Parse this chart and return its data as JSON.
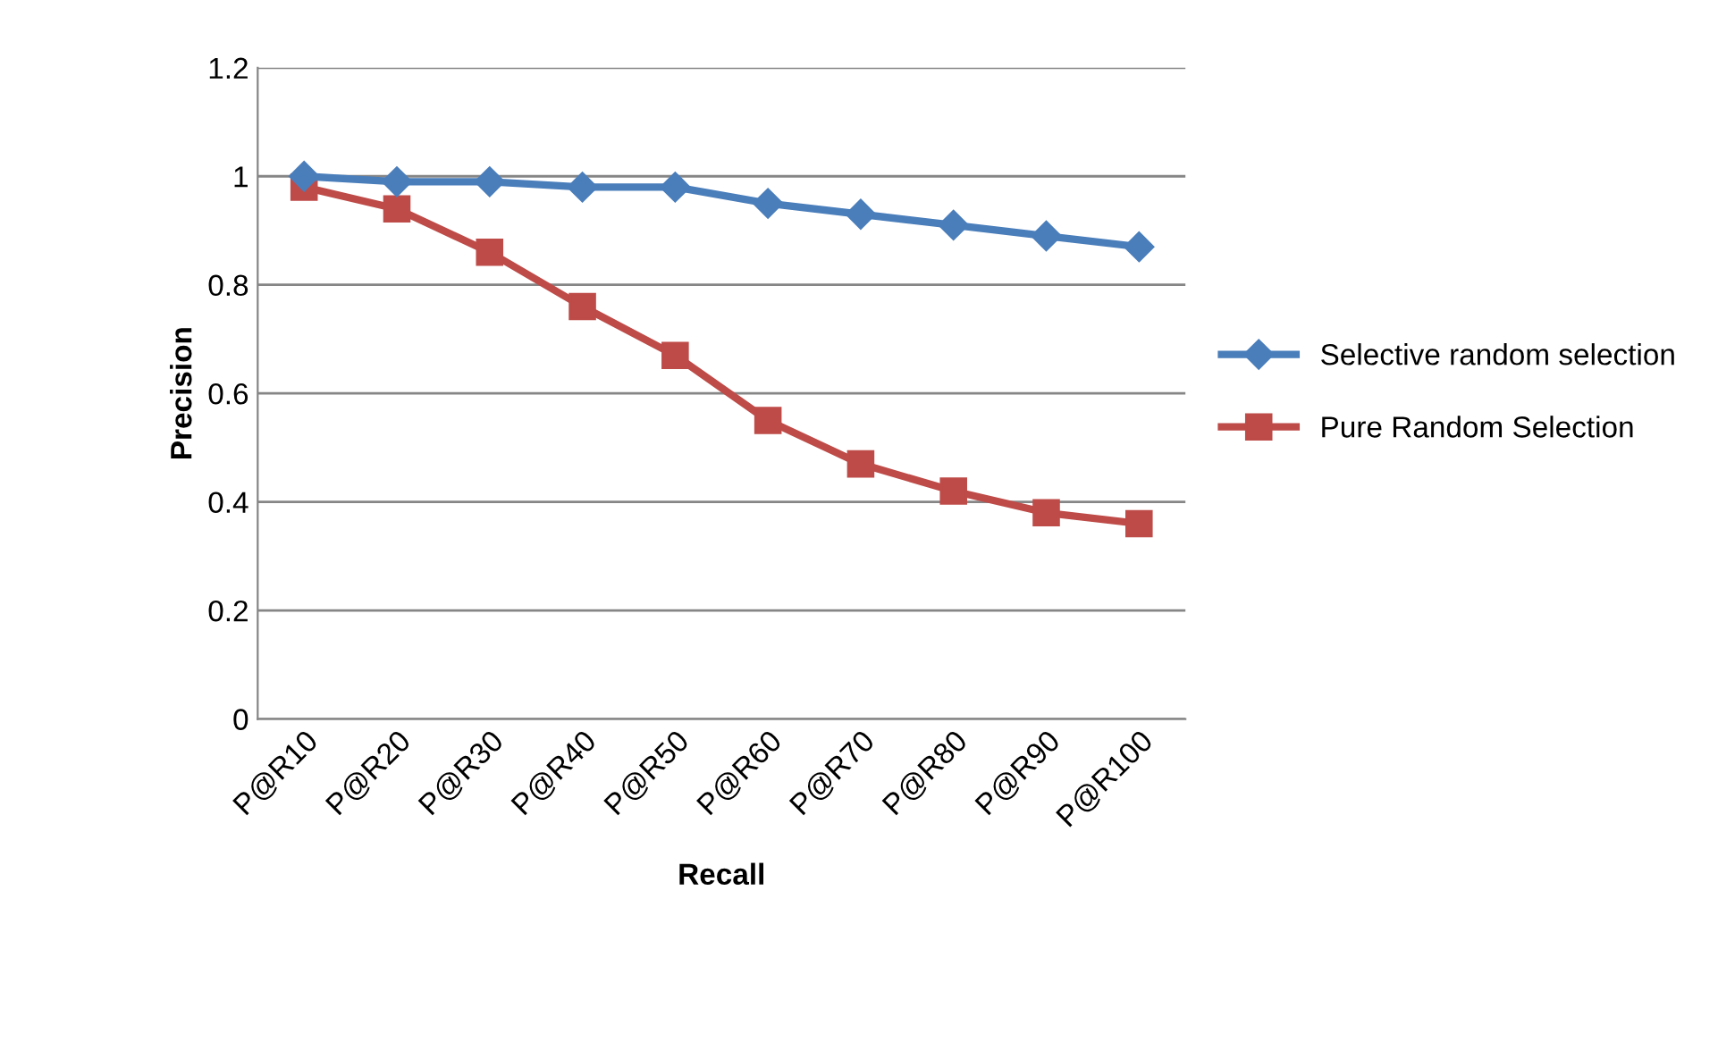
{
  "chart_data": {
    "type": "line",
    "xlabel": "Recall",
    "ylabel": "Precision",
    "categories": [
      "P@R10",
      "P@R20",
      "P@R30",
      "P@R40",
      "P@R50",
      "P@R60",
      "P@R70",
      "P@R80",
      "P@R90",
      "P@R100"
    ],
    "series": [
      {
        "name": "Selective random selection",
        "color": "#4a7ebb",
        "marker": "diamond",
        "values": [
          1.0,
          0.99,
          0.99,
          0.98,
          0.98,
          0.95,
          0.93,
          0.91,
          0.89,
          0.87
        ]
      },
      {
        "name": "Pure Random Selection",
        "color": "#be4b48",
        "marker": "square",
        "values": [
          0.98,
          0.94,
          0.86,
          0.76,
          0.67,
          0.55,
          0.47,
          0.42,
          0.38,
          0.36
        ]
      }
    ],
    "ylim": [
      0,
      1.2
    ],
    "yticks": [
      0,
      0.2,
      0.4,
      0.6,
      0.8,
      1,
      1.2
    ],
    "grid": "y",
    "legend": "right"
  }
}
